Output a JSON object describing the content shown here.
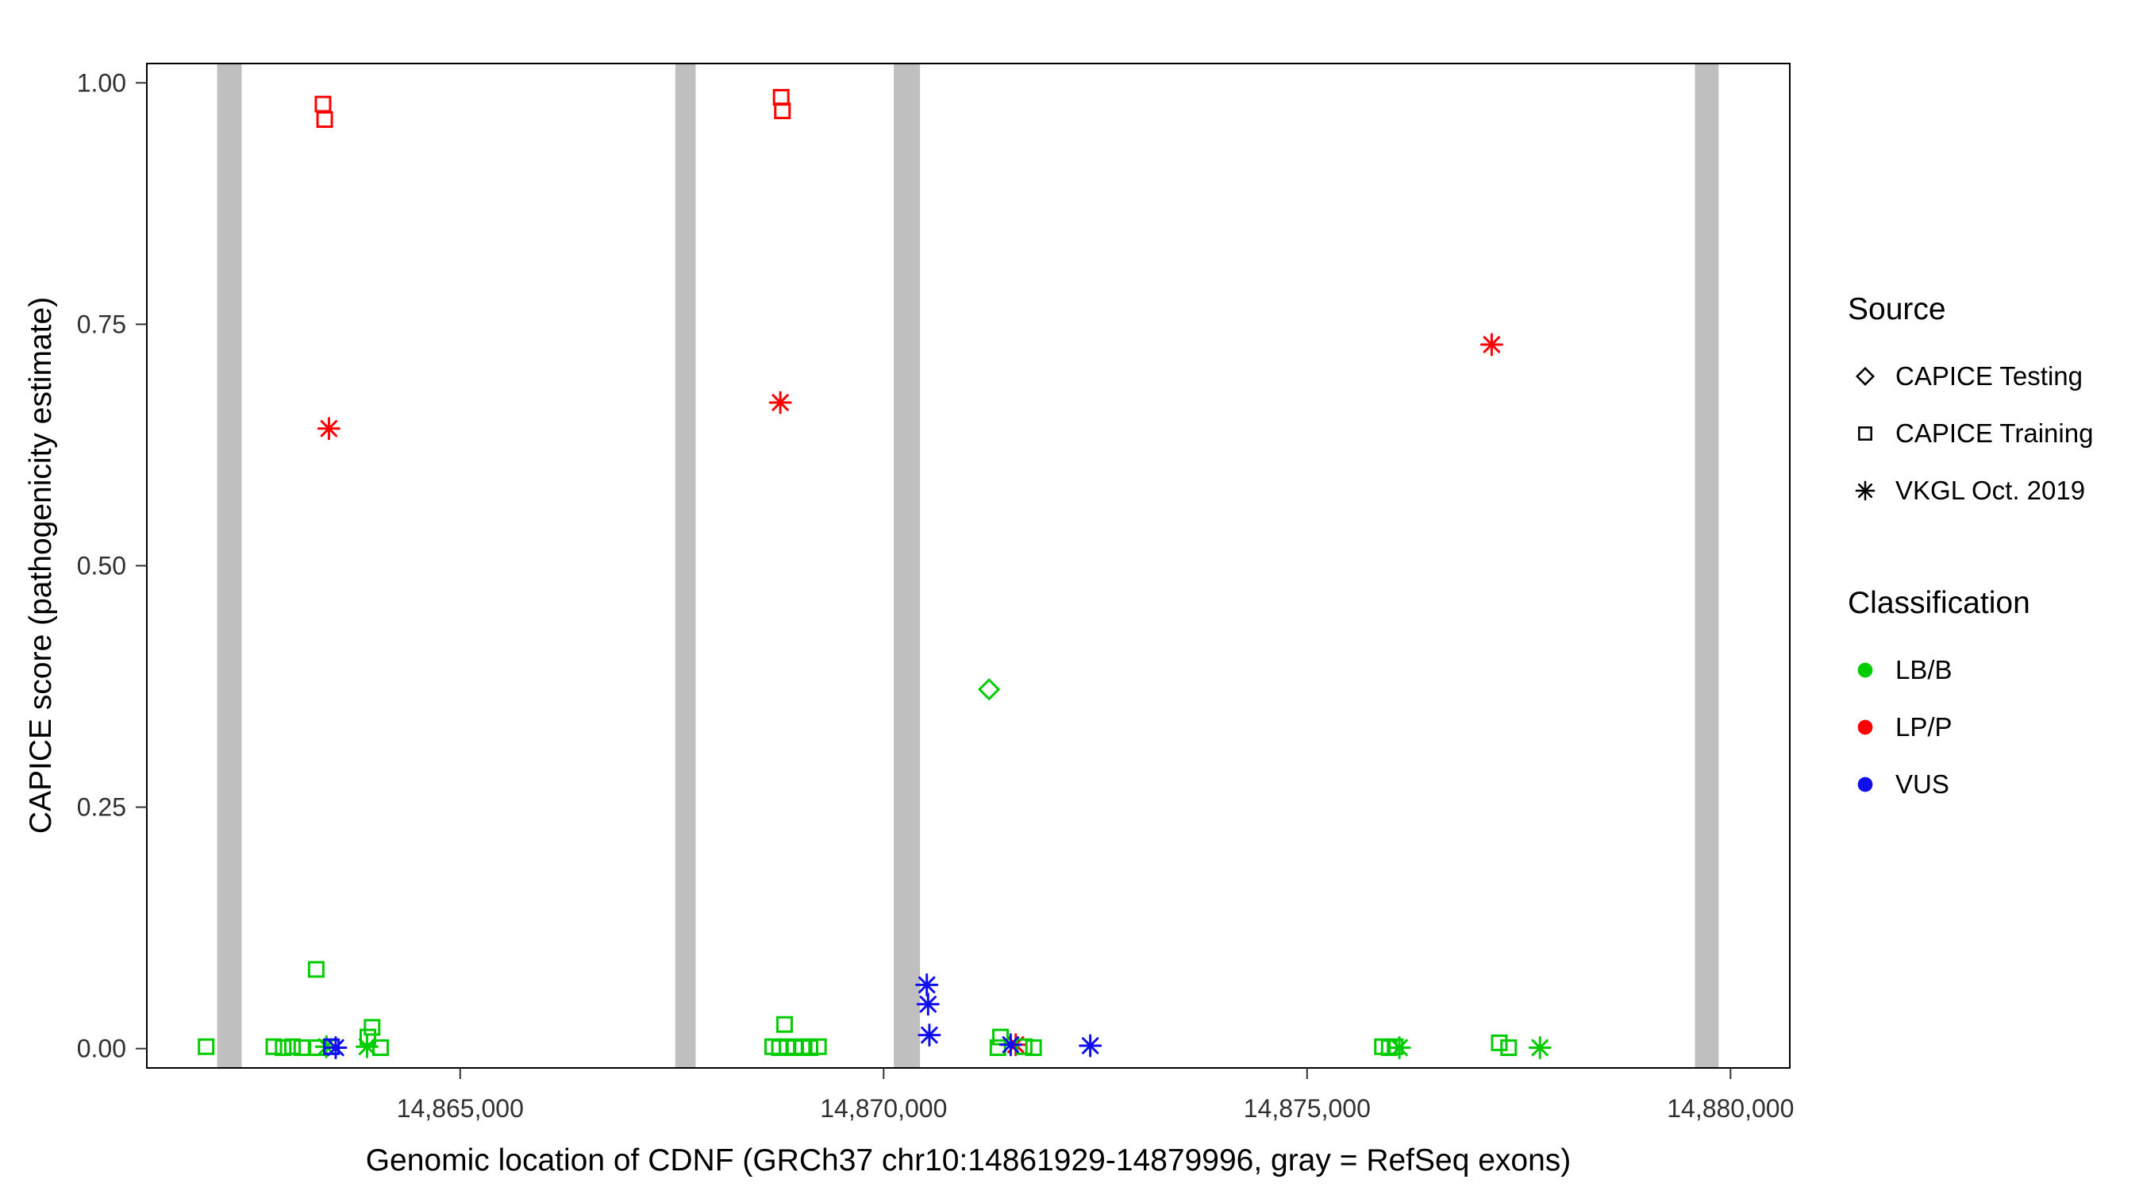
{
  "chart_data": {
    "type": "scatter",
    "title": "",
    "xlabel": "Genomic location of CDNF (GRCh37 chr10:14861929-14879996, gray = RefSeq exons)",
    "ylabel": "CAPICE score (pathogenicity estimate)",
    "xlim": [
      14861300,
      14880700
    ],
    "ylim": [
      -0.02,
      1.02
    ],
    "grid": "off",
    "x_ticks": [
      {
        "value": 14865000,
        "label": "14,865,000"
      },
      {
        "value": 14870000,
        "label": "14,870,000"
      },
      {
        "value": 14875000,
        "label": "14,875,000"
      },
      {
        "value": 14880000,
        "label": "14,880,000"
      }
    ],
    "y_ticks": [
      {
        "value": 0.0,
        "label": "0.00"
      },
      {
        "value": 0.25,
        "label": "0.25"
      },
      {
        "value": 0.5,
        "label": "0.50"
      },
      {
        "value": 0.75,
        "label": "0.75"
      },
      {
        "value": 1.0,
        "label": "1.00"
      }
    ],
    "exon_color": "#BFBFBF",
    "exons": [
      {
        "start": 14862130,
        "end": 14862420
      },
      {
        "start": 14867540,
        "end": 14867780
      },
      {
        "start": 14870120,
        "end": 14870430
      },
      {
        "start": 14879580,
        "end": 14879860
      }
    ],
    "classification_colors": {
      "LB/B": "#00CC00",
      "LP/P": "#FF0000",
      "VUS": "#1010EE"
    },
    "shape_by_source": {
      "CAPICE Testing": "diamond",
      "CAPICE Training": "square",
      "VKGL Oct. 2019": "asterisk"
    },
    "points": [
      {
        "x": 14863380,
        "y": 0.978,
        "source": "CAPICE Training",
        "classification": "LP/P"
      },
      {
        "x": 14863400,
        "y": 0.962,
        "source": "CAPICE Training",
        "classification": "LP/P"
      },
      {
        "x": 14863450,
        "y": 0.642,
        "source": "VKGL Oct. 2019",
        "classification": "LP/P"
      },
      {
        "x": 14868790,
        "y": 0.985,
        "source": "CAPICE Training",
        "classification": "LP/P"
      },
      {
        "x": 14868805,
        "y": 0.971,
        "source": "CAPICE Training",
        "classification": "LP/P"
      },
      {
        "x": 14868780,
        "y": 0.669,
        "source": "VKGL Oct. 2019",
        "classification": "LP/P"
      },
      {
        "x": 14877180,
        "y": 0.729,
        "source": "VKGL Oct. 2019",
        "classification": "LP/P"
      },
      {
        "x": 14871560,
        "y": 0.004,
        "source": "VKGL Oct. 2019",
        "classification": "LP/P"
      },
      {
        "x": 14871245,
        "y": 0.372,
        "source": "CAPICE Testing",
        "classification": "LB/B"
      },
      {
        "x": 14863300,
        "y": 0.082,
        "source": "CAPICE Training",
        "classification": "LB/B"
      },
      {
        "x": 14862000,
        "y": 0.002,
        "source": "CAPICE Training",
        "classification": "LB/B"
      },
      {
        "x": 14862800,
        "y": 0.002,
        "source": "CAPICE Training",
        "classification": "LB/B"
      },
      {
        "x": 14862910,
        "y": 0.001,
        "source": "CAPICE Training",
        "classification": "LB/B"
      },
      {
        "x": 14863020,
        "y": 0.002,
        "source": "CAPICE Training",
        "classification": "LB/B"
      },
      {
        "x": 14863130,
        "y": 0.001,
        "source": "CAPICE Training",
        "classification": "LB/B"
      },
      {
        "x": 14863310,
        "y": 0.001,
        "source": "CAPICE Training",
        "classification": "LB/B"
      },
      {
        "x": 14863420,
        "y": 0.002,
        "source": "VKGL Oct. 2019",
        "classification": "LB/B"
      },
      {
        "x": 14863960,
        "y": 0.022,
        "source": "CAPICE Training",
        "classification": "LB/B"
      },
      {
        "x": 14863910,
        "y": 0.012,
        "source": "CAPICE Training",
        "classification": "LB/B"
      },
      {
        "x": 14863900,
        "y": 0.002,
        "source": "VKGL Oct. 2019",
        "classification": "LB/B"
      },
      {
        "x": 14864060,
        "y": 0.001,
        "source": "CAPICE Training",
        "classification": "LB/B"
      },
      {
        "x": 14868830,
        "y": 0.025,
        "source": "CAPICE Training",
        "classification": "LB/B"
      },
      {
        "x": 14868690,
        "y": 0.002,
        "source": "CAPICE Training",
        "classification": "LB/B"
      },
      {
        "x": 14868770,
        "y": 0.001,
        "source": "CAPICE Training",
        "classification": "LB/B"
      },
      {
        "x": 14868860,
        "y": 0.002,
        "source": "CAPICE Training",
        "classification": "LB/B"
      },
      {
        "x": 14868950,
        "y": 0.001,
        "source": "CAPICE Training",
        "classification": "LB/B"
      },
      {
        "x": 14869040,
        "y": 0.002,
        "source": "CAPICE Training",
        "classification": "LB/B"
      },
      {
        "x": 14869130,
        "y": 0.001,
        "source": "CAPICE Training",
        "classification": "LB/B"
      },
      {
        "x": 14869230,
        "y": 0.002,
        "source": "CAPICE Training",
        "classification": "LB/B"
      },
      {
        "x": 14871380,
        "y": 0.012,
        "source": "CAPICE Training",
        "classification": "LB/B"
      },
      {
        "x": 14871350,
        "y": 0.001,
        "source": "CAPICE Training",
        "classification": "LB/B"
      },
      {
        "x": 14871660,
        "y": 0.002,
        "source": "CAPICE Training",
        "classification": "LB/B"
      },
      {
        "x": 14871770,
        "y": 0.001,
        "source": "CAPICE Training",
        "classification": "LB/B"
      },
      {
        "x": 14875890,
        "y": 0.002,
        "source": "CAPICE Training",
        "classification": "LB/B"
      },
      {
        "x": 14875970,
        "y": 0.001,
        "source": "CAPICE Training",
        "classification": "LB/B"
      },
      {
        "x": 14876040,
        "y": 0.002,
        "source": "CAPICE Training",
        "classification": "LB/B"
      },
      {
        "x": 14876090,
        "y": 0.001,
        "source": "VKGL Oct. 2019",
        "classification": "LB/B"
      },
      {
        "x": 14877270,
        "y": 0.006,
        "source": "CAPICE Training",
        "classification": "LB/B"
      },
      {
        "x": 14877380,
        "y": 0.001,
        "source": "CAPICE Training",
        "classification": "LB/B"
      },
      {
        "x": 14877750,
        "y": 0.001,
        "source": "VKGL Oct. 2019",
        "classification": "LB/B"
      },
      {
        "x": 14870510,
        "y": 0.066,
        "source": "VKGL Oct. 2019",
        "classification": "VUS"
      },
      {
        "x": 14870525,
        "y": 0.046,
        "source": "VKGL Oct. 2019",
        "classification": "VUS"
      },
      {
        "x": 14870540,
        "y": 0.014,
        "source": "VKGL Oct. 2019",
        "classification": "VUS"
      },
      {
        "x": 14872440,
        "y": 0.003,
        "source": "VKGL Oct. 2019",
        "classification": "VUS"
      },
      {
        "x": 14863480,
        "y": 0.002,
        "source": "CAPICE Training",
        "classification": "VUS"
      },
      {
        "x": 14863530,
        "y": 0.001,
        "source": "VKGL Oct. 2019",
        "classification": "VUS"
      },
      {
        "x": 14871500,
        "y": 0.004,
        "source": "VKGL Oct. 2019",
        "classification": "VUS"
      }
    ]
  },
  "legend": {
    "source": {
      "title": "Source",
      "items": [
        {
          "label": "CAPICE Testing",
          "shape": "diamond"
        },
        {
          "label": "CAPICE Training",
          "shape": "square"
        },
        {
          "label": "VKGL Oct. 2019",
          "shape": "asterisk"
        }
      ]
    },
    "classification": {
      "title": "Classification",
      "items": [
        {
          "label": "LB/B",
          "color": "#00CC00"
        },
        {
          "label": "LP/P",
          "color": "#FF0000"
        },
        {
          "label": "VUS",
          "color": "#1010EE"
        }
      ]
    }
  }
}
